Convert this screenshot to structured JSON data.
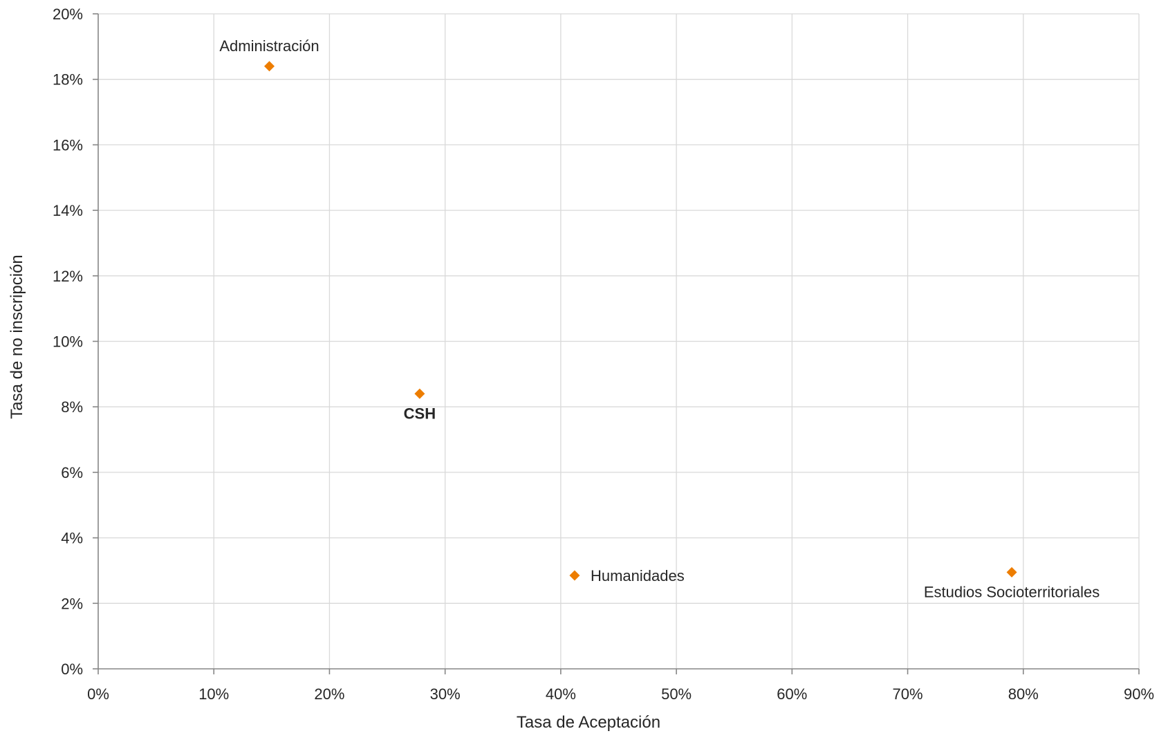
{
  "chart_data": {
    "type": "scatter",
    "title": "",
    "xlabel": "Tasa de Aceptación",
    "ylabel": "Tasa de no inscripción",
    "xlim": [
      0,
      0.9
    ],
    "ylim": [
      0,
      0.2
    ],
    "x_ticks": [
      0,
      0.1,
      0.2,
      0.3,
      0.4,
      0.5,
      0.6,
      0.7,
      0.8,
      0.9
    ],
    "x_tick_labels": [
      "0%",
      "10%",
      "20%",
      "30%",
      "40%",
      "50%",
      "60%",
      "70%",
      "80%",
      "90%"
    ],
    "y_ticks": [
      0,
      0.02,
      0.04,
      0.06,
      0.08,
      0.1,
      0.12,
      0.14,
      0.16,
      0.18,
      0.2
    ],
    "y_tick_labels": [
      "0%",
      "2%",
      "4%",
      "6%",
      "8%",
      "10%",
      "12%",
      "14%",
      "16%",
      "18%",
      "20%"
    ],
    "grid": true,
    "legend": "none",
    "marker": "diamond",
    "marker_color": "#ED7D00",
    "points": [
      {
        "label": "Administración",
        "x": 0.148,
        "y": 0.184,
        "label_position": "top",
        "highlight": false
      },
      {
        "label": "CSH",
        "x": 0.278,
        "y": 0.084,
        "label_position": "bottom",
        "highlight": true
      },
      {
        "label": "Humanidades",
        "x": 0.412,
        "y": 0.0285,
        "label_position": "right",
        "highlight": false
      },
      {
        "label": "Estudios Socioterritoriales",
        "x": 0.79,
        "y": 0.0295,
        "label_position": "bottom",
        "highlight": false
      }
    ]
  },
  "colors": {
    "marker": "#ED7D00",
    "highlight_label": "#ED7D00",
    "grid": "#D9D9D9",
    "axis": "#868686",
    "text": "#262626"
  }
}
